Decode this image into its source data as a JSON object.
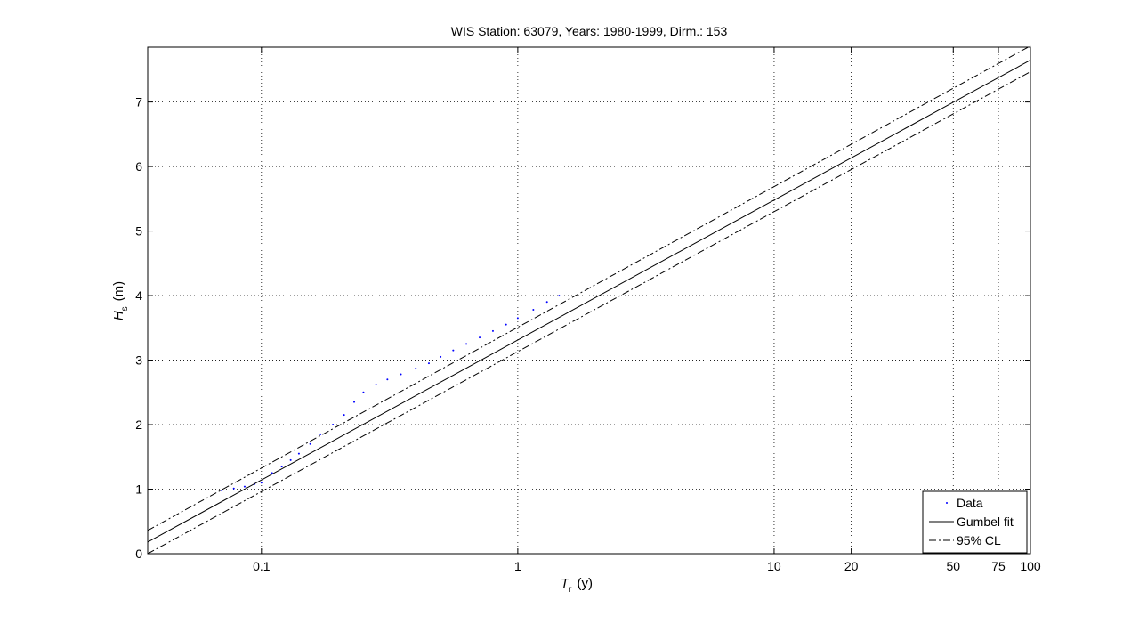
{
  "chart_data": {
    "type": "line",
    "title": "WIS Station: 63079, Years: 1980-1999, Dirm.: 153",
    "xlabel": {
      "symbol": "T",
      "subscript": "r",
      "unit": "(y)"
    },
    "ylabel": {
      "symbol": "H",
      "subscript": "s",
      "unit": "(m)"
    },
    "x_scale": "log",
    "xlim": [
      0.036,
      100
    ],
    "ylim": [
      0,
      7.85
    ],
    "grid": true,
    "legend_position": "bottom-right",
    "x_ticks": [
      {
        "value": 0.1,
        "label": "0.1"
      },
      {
        "value": 1,
        "label": "1"
      },
      {
        "value": 10,
        "label": "10"
      },
      {
        "value": 20,
        "label": "20"
      },
      {
        "value": 50,
        "label": "50"
      },
      {
        "value": 75,
        "label": "75"
      },
      {
        "value": 100,
        "label": "100"
      }
    ],
    "y_ticks": [
      {
        "value": 0,
        "label": "0"
      },
      {
        "value": 1,
        "label": "1"
      },
      {
        "value": 2,
        "label": "2"
      },
      {
        "value": 3,
        "label": "3"
      },
      {
        "value": 4,
        "label": "4"
      },
      {
        "value": 5,
        "label": "5"
      },
      {
        "value": 6,
        "label": "6"
      },
      {
        "value": 7,
        "label": "7"
      }
    ],
    "series": [
      {
        "name": "Data",
        "style": "dots",
        "color": "#0000ff",
        "x": [
          0.07,
          0.078,
          0.086,
          0.094,
          0.1,
          0.11,
          0.12,
          0.13,
          0.14,
          0.155,
          0.17,
          0.19,
          0.21,
          0.23,
          0.25,
          0.28,
          0.31,
          0.35,
          0.4,
          0.45,
          0.5,
          0.56,
          0.63,
          0.71,
          0.8,
          0.9,
          1.0,
          1.15,
          1.3,
          1.45
        ],
        "y": [
          0.98,
          1.01,
          1.04,
          1.08,
          1.1,
          1.25,
          1.35,
          1.45,
          1.55,
          1.7,
          1.85,
          2.0,
          2.15,
          2.35,
          2.5,
          2.62,
          2.7,
          2.78,
          2.87,
          2.95,
          3.05,
          3.15,
          3.25,
          3.35,
          3.45,
          3.55,
          3.65,
          3.78,
          3.9,
          4.0
        ]
      },
      {
        "name": "Gumbel fit",
        "style": "solid",
        "color": "#000000",
        "x": [
          0.036,
          100
        ],
        "y": [
          0.18,
          7.65
        ]
      },
      {
        "name": "95% CL",
        "style": "dashdot",
        "color": "#000000",
        "x": [
          0.036,
          100
        ],
        "y": [
          0.36,
          7.87
        ]
      },
      {
        "name": "",
        "style": "dashdot",
        "color": "#000000",
        "x": [
          0.036,
          100
        ],
        "y": [
          0.0,
          7.47
        ]
      }
    ]
  }
}
